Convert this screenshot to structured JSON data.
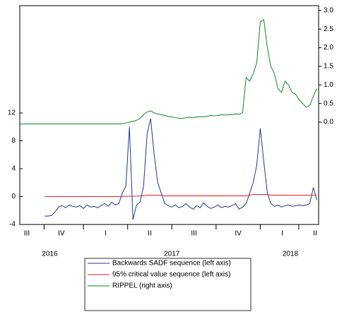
{
  "chart_data": {
    "type": "line",
    "x": [
      2016.64,
      2016.66,
      2016.68,
      2016.7,
      2016.72,
      2016.74,
      2016.76,
      2016.78,
      2016.8,
      2016.82,
      2016.84,
      2016.86,
      2016.88,
      2016.9,
      2016.92,
      2016.94,
      2016.96,
      2016.98,
      2017.0,
      2017.02,
      2017.04,
      2017.06,
      2017.08,
      2017.1,
      2017.12,
      2017.14,
      2017.16,
      2017.18,
      2017.2,
      2017.22,
      2017.24,
      2017.26,
      2017.28,
      2017.3,
      2017.32,
      2017.34,
      2017.36,
      2017.38,
      2017.4,
      2017.42,
      2017.44,
      2017.46,
      2017.48,
      2017.5,
      2017.52,
      2017.54,
      2017.56,
      2017.58,
      2017.6,
      2017.62,
      2017.64,
      2017.66,
      2017.68,
      2017.7,
      2017.72,
      2017.74,
      2017.76,
      2017.78,
      2017.8,
      2017.82,
      2017.84,
      2017.86,
      2017.88,
      2017.9,
      2017.92,
      2017.94,
      2017.96,
      2017.98,
      2018.0,
      2018.02,
      2018.04,
      2018.06,
      2018.08,
      2018.1,
      2018.12,
      2018.14,
      2018.16,
      2018.18,
      2018.2,
      2018.22,
      2018.24,
      2018.26,
      2018.28,
      2018.3,
      2018.32
    ],
    "series": [
      {
        "name": "Backwards SADF sequence (left axis)",
        "color": "#2a3c9c",
        "values": [
          null,
          null,
          null,
          null,
          null,
          null,
          null,
          -2.8,
          -2.8,
          -2.7,
          -2.2,
          -1.5,
          -1.3,
          -1.6,
          -1.2,
          -1.4,
          -1.5,
          -1.3,
          -1.7,
          -1.2,
          -1.5,
          -1.4,
          -1.6,
          -1.3,
          -1.0,
          -1.4,
          -0.8,
          -1.2,
          -1.0,
          0.5,
          1.5,
          10.0,
          -3.3,
          -1.2,
          -0.8,
          1.5,
          9.0,
          11.2,
          6.0,
          2.0,
          0.5,
          -1.0,
          -1.3,
          -1.5,
          -1.2,
          -1.6,
          -1.4,
          -1.0,
          -1.5,
          -1.8,
          -1.3,
          -1.6,
          -0.9,
          -1.4,
          -1.7,
          -1.5,
          -1.2,
          -1.6,
          -1.4,
          -1.5,
          -1.3,
          -1.0,
          -1.8,
          -1.5,
          -1.0,
          0.5,
          2.0,
          4.5,
          9.8,
          5.0,
          0.5,
          -1.0,
          -1.4,
          -1.2,
          -1.5,
          -1.3,
          -1.2,
          -1.4,
          -1.3,
          -1.2,
          -1.3,
          -1.2,
          -1.0,
          1.3,
          -0.5
        ]
      },
      {
        "name": "95% critical value sequence (left axis)",
        "color": "#e3262b",
        "values": [
          null,
          null,
          null,
          null,
          null,
          null,
          null,
          0.0,
          0.0,
          0.0,
          0.0,
          0.0,
          0.0,
          0.0,
          0.0,
          0.0,
          0.0,
          0.0,
          0.0,
          0.0,
          0.0,
          0.0,
          0.0,
          0.0,
          0.0,
          0.0,
          0.0,
          0.0,
          0.0,
          0.0,
          0.05,
          0.05,
          0.05,
          0.05,
          0.1,
          0.1,
          0.2,
          0.2,
          0.2,
          0.2,
          0.2,
          0.1,
          0.1,
          0.1,
          0.1,
          0.1,
          0.1,
          0.1,
          0.1,
          0.1,
          0.1,
          0.1,
          0.1,
          0.1,
          0.1,
          0.1,
          0.1,
          0.1,
          0.1,
          0.1,
          0.1,
          0.1,
          0.1,
          0.1,
          0.1,
          0.2,
          0.3,
          0.3,
          0.3,
          0.3,
          0.3,
          0.2,
          0.2,
          0.2,
          0.2,
          0.2,
          0.2,
          0.2,
          0.2,
          0.2,
          0.2,
          0.2,
          0.2,
          0.2,
          0.2
        ]
      },
      {
        "name": "RIPPEL (right axis)",
        "color": "#1b8a2c",
        "axis": "y2",
        "values": [
          -0.05,
          -0.05,
          -0.05,
          -0.05,
          -0.05,
          -0.05,
          -0.05,
          -0.05,
          -0.05,
          -0.05,
          -0.05,
          -0.05,
          -0.05,
          -0.05,
          -0.05,
          -0.05,
          -0.05,
          -0.05,
          -0.05,
          -0.05,
          -0.05,
          -0.05,
          -0.05,
          -0.05,
          -0.05,
          -0.05,
          -0.05,
          -0.05,
          -0.05,
          -0.04,
          -0.02,
          0.0,
          0.02,
          0.05,
          0.1,
          0.2,
          0.27,
          0.3,
          0.25,
          0.22,
          0.2,
          0.18,
          0.15,
          0.14,
          0.12,
          0.1,
          0.1,
          0.12,
          0.13,
          0.12,
          0.14,
          0.15,
          0.14,
          0.16,
          0.18,
          0.17,
          0.18,
          0.2,
          0.19,
          0.2,
          0.2,
          0.22,
          0.21,
          0.25,
          1.2,
          1.1,
          1.3,
          1.6,
          2.7,
          2.75,
          2.0,
          1.5,
          1.3,
          0.9,
          0.8,
          1.1,
          1.0,
          0.8,
          0.75,
          0.6,
          0.5,
          0.4,
          0.45,
          0.7,
          0.9
        ]
      }
    ],
    "xlim": [
      2016.64,
      2018.33
    ],
    "xticks": [
      {
        "value": 2016.68,
        "label": "III"
      },
      {
        "value": 2016.875,
        "label": "IV"
      },
      {
        "value": 2017.125,
        "label": "I"
      },
      {
        "value": 2017.375,
        "label": "II"
      },
      {
        "value": 2017.625,
        "label": "III"
      },
      {
        "value": 2017.875,
        "label": "IV"
      },
      {
        "value": 2018.125,
        "label": "I"
      },
      {
        "value": 2018.31,
        "label": "II"
      }
    ],
    "year_labels": [
      {
        "value": 2016.81,
        "label": "2016"
      },
      {
        "value": 2017.5,
        "label": "2017"
      },
      {
        "value": 2018.17,
        "label": "2018"
      }
    ],
    "ylim": [
      -4,
      27.4
    ],
    "yticks": [
      -4,
      0,
      4,
      8,
      12
    ],
    "y2lim": [
      -2.75,
      3.13
    ],
    "y2ticks": [
      {
        "value": 0,
        "label": "0.0"
      },
      0.5,
      {
        "value": 1,
        "label": "1.0"
      },
      1.5,
      {
        "value": 2,
        "label": "2.0"
      },
      2.5,
      {
        "value": 3,
        "label": "3.0"
      }
    ]
  }
}
